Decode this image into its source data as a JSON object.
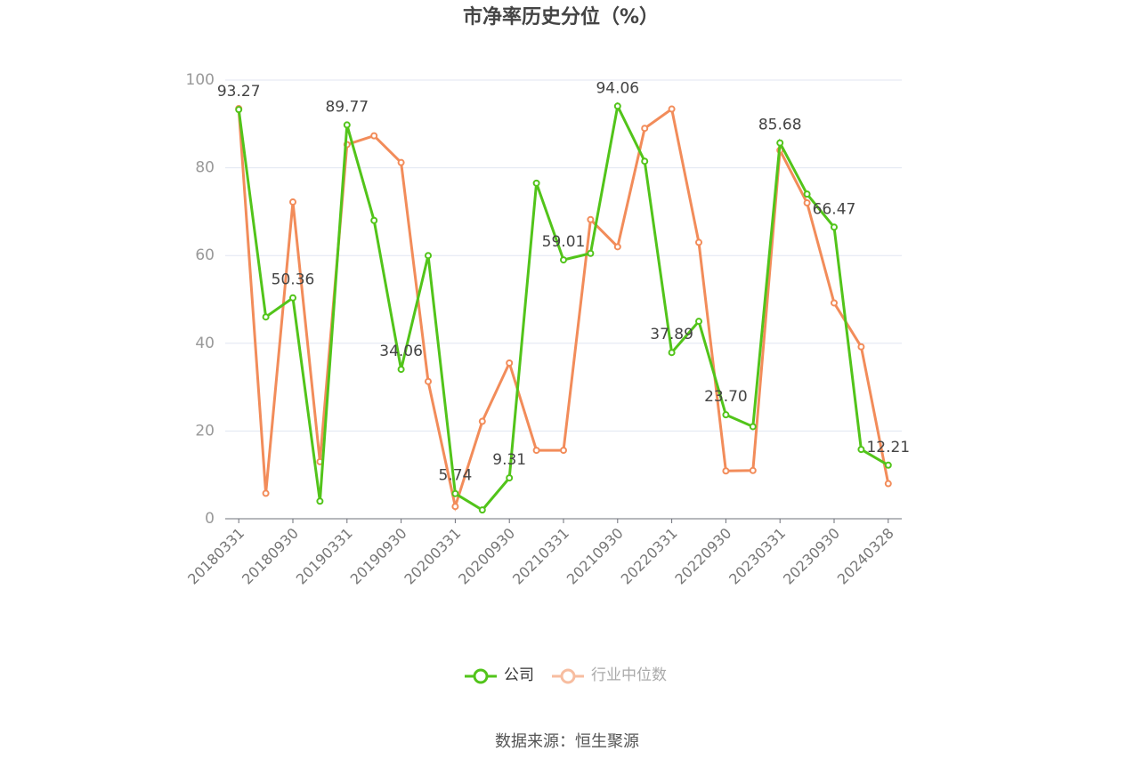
{
  "chart_data": {
    "type": "line",
    "title": "市净率历史分位（%）",
    "source": "数据来源：恒生聚源",
    "categories": [
      "20180331",
      null,
      "20180930",
      null,
      "20190331",
      null,
      "20190930",
      null,
      "20200331",
      null,
      "20200930",
      null,
      "20210331",
      null,
      "20210930",
      null,
      "20220331",
      null,
      "20220930",
      null,
      "20230331",
      null,
      "20230930",
      null,
      "20240328"
    ],
    "series": [
      {
        "name": "公司",
        "color": "#52c41a",
        "values": [
          93.27,
          46,
          50.36,
          4,
          89.77,
          68,
          34.06,
          60,
          5.74,
          2,
          9.31,
          76.5,
          59.01,
          60.5,
          94.06,
          81.5,
          37.89,
          45,
          23.7,
          21,
          85.68,
          74,
          66.47,
          15.8,
          12.21
        ],
        "value_labels": [
          "93.27",
          null,
          "50.36",
          null,
          "89.77",
          null,
          "34.06",
          null,
          "5.74",
          null,
          "9.31",
          null,
          "59.01",
          null,
          "94.06",
          null,
          "37.89",
          null,
          "23.70",
          null,
          "85.68",
          null,
          "66.47",
          null,
          "12.21"
        ]
      },
      {
        "name": "行业中位数",
        "color": "#f28c5a",
        "values": [
          93.5,
          5.8,
          72.2,
          13,
          85.3,
          87.3,
          81.2,
          31.3,
          2.8,
          22.2,
          35.5,
          15.6,
          15.6,
          68.2,
          62,
          89,
          93.4,
          63,
          10.9,
          11,
          84,
          72,
          49.2,
          39.2,
          8
        ]
      }
    ],
    "ylim": [
      0,
      100
    ],
    "yticks": [
      0,
      20,
      40,
      60,
      80,
      100
    ],
    "grid": true
  }
}
